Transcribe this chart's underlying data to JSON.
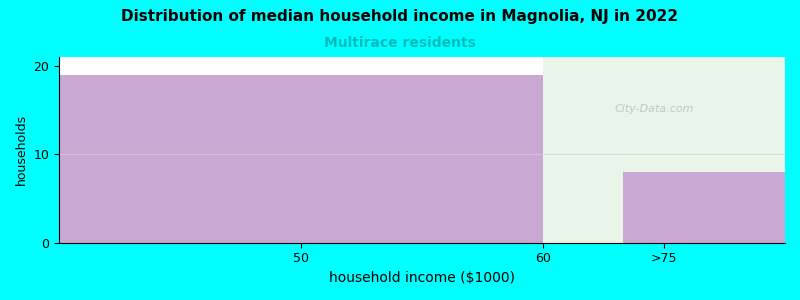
{
  "title": "Distribution of median household income in Magnolia, NJ in 2022",
  "subtitle": "Multirace residents",
  "xlabel": "household income ($1000)",
  "ylabel": "households",
  "background_color": "#00FFFF",
  "plot_bg_color": "#FFFFFF",
  "bar_color": "#C9A8D4",
  "empty_bg_color": "#E8F5E8",
  "categories": [
    "50",
    "60",
    ">75"
  ],
  "values": [
    19,
    0,
    8
  ],
  "ylim": [
    0,
    21
  ],
  "yticks": [
    0,
    10,
    20
  ],
  "title_fontsize": 11,
  "subtitle_color": "#00BBBB",
  "subtitle_fontsize": 10,
  "watermark": "City-Data.com",
  "figsize": [
    8.0,
    3.0
  ],
  "dpi": 100,
  "xlabel_fontsize": 10,
  "ylabel_fontsize": 9
}
